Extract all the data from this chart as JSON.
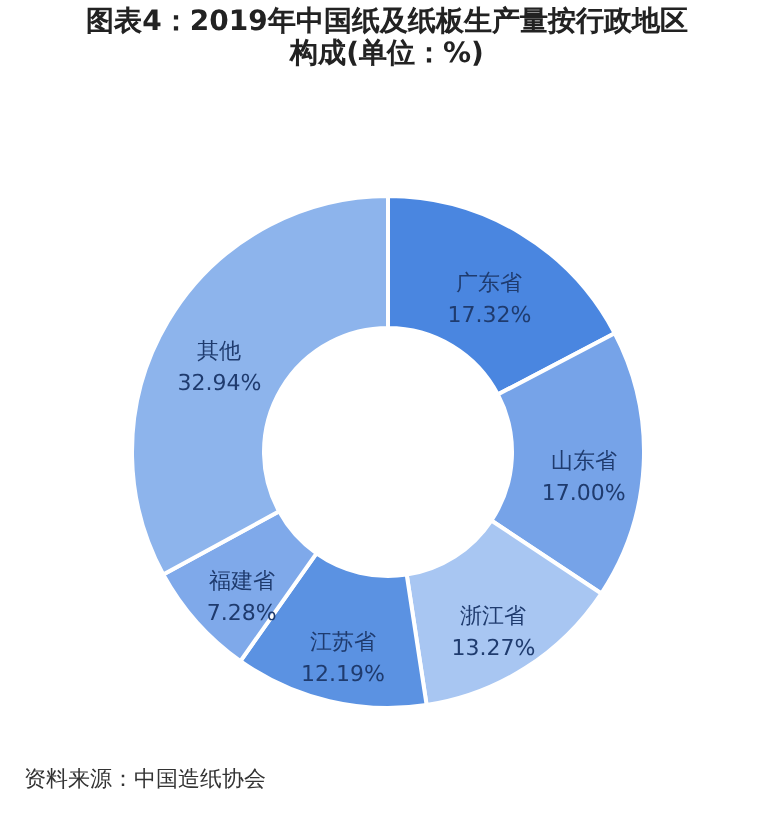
{
  "chart_data": {
    "type": "donut",
    "title": "图表4：2019年中国纸及纸板生产量按行政地区构成(单位：%)",
    "categories": [
      "广东省",
      "山东省",
      "浙江省",
      "江苏省",
      "福建省",
      "其他"
    ],
    "values": [
      17.32,
      17.0,
      13.27,
      12.19,
      7.28,
      32.94
    ],
    "value_labels": [
      "17.32%",
      "17.00%",
      "13.27%",
      "12.19%",
      "7.28%",
      "32.94%"
    ],
    "colors": [
      "#4a86e0",
      "#76a3e8",
      "#a8c6f2",
      "#5b92e2",
      "#7fa9ea",
      "#8db4ec"
    ],
    "legend": false,
    "annotations": [
      "资料来源：中国造纸协会"
    ]
  }
}
